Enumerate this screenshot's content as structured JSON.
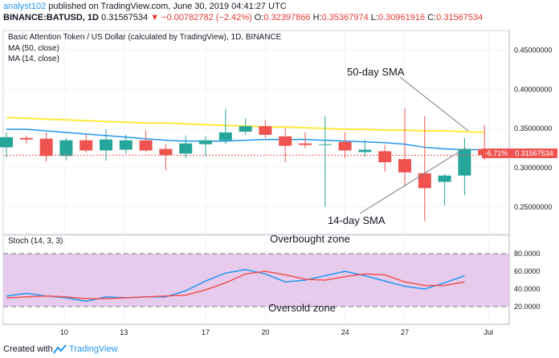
{
  "header": {
    "author": "analyst102",
    "published_text": "published on TradingView.com, June 30, 2019 04:41:27 UTC",
    "symbol": "BINANCE:BATUSD, 1D",
    "close_value": "0.31567534",
    "change_arrow": "▼",
    "change_value": "−0.00782782 (−2.42%)",
    "o_label": "O:",
    "o_value": "0.32397866",
    "h_label": "H:",
    "h_value": "0.35367974",
    "l_label": "L:",
    "l_value": "0.30961916",
    "c_label": "C:",
    "c_value": "0.31567534"
  },
  "footer": {
    "created_text": "Created with",
    "brand": "TradingView"
  },
  "colors": {
    "up": "#26a69a",
    "down": "#ef5350",
    "ma50": "#ffeb3b",
    "ma14": "#2196f3",
    "stoch_k": "#2196f3",
    "stoch_d": "#ef5350",
    "stoch_band": "#e1bee7"
  },
  "chart_data": [
    {
      "type": "candlestick",
      "title": "Basic Attention Token / US Dollar (calculated by TradingView), 1D, BINANCE",
      "legend": [
        "MA (50, close)",
        "MA (14, close)"
      ],
      "x_ticks": [
        "10",
        "13",
        "17",
        "20",
        "24",
        "27",
        "Jul"
      ],
      "y_ticks": [
        "0.25000000",
        "0.30000000",
        "0.35000000",
        "0.40000000",
        "0.45000000"
      ],
      "ylim": [
        0.215,
        0.475
      ],
      "last_price_label": "0.31567534",
      "last_change_label": "-6.71%",
      "annotations": [
        {
          "text": "50-day SMA",
          "target": "ma50"
        },
        {
          "text": "14-day SMA",
          "target": "ma14"
        }
      ],
      "candles": [
        {
          "o": 0.326,
          "h": 0.345,
          "l": 0.313,
          "c": 0.339
        },
        {
          "o": 0.338,
          "h": 0.341,
          "l": 0.331,
          "c": 0.336
        },
        {
          "o": 0.337,
          "h": 0.345,
          "l": 0.308,
          "c": 0.315
        },
        {
          "o": 0.315,
          "h": 0.338,
          "l": 0.31,
          "c": 0.335
        },
        {
          "o": 0.335,
          "h": 0.343,
          "l": 0.319,
          "c": 0.322
        },
        {
          "o": 0.322,
          "h": 0.349,
          "l": 0.309,
          "c": 0.336
        },
        {
          "o": 0.323,
          "h": 0.342,
          "l": 0.318,
          "c": 0.335
        },
        {
          "o": 0.335,
          "h": 0.348,
          "l": 0.32,
          "c": 0.322
        },
        {
          "o": 0.324,
          "h": 0.33,
          "l": 0.297,
          "c": 0.316
        },
        {
          "o": 0.318,
          "h": 0.341,
          "l": 0.312,
          "c": 0.331
        },
        {
          "o": 0.33,
          "h": 0.34,
          "l": 0.314,
          "c": 0.335
        },
        {
          "o": 0.335,
          "h": 0.375,
          "l": 0.33,
          "c": 0.345
        },
        {
          "o": 0.346,
          "h": 0.363,
          "l": 0.342,
          "c": 0.353
        },
        {
          "o": 0.353,
          "h": 0.361,
          "l": 0.338,
          "c": 0.342
        },
        {
          "o": 0.34,
          "h": 0.35,
          "l": 0.307,
          "c": 0.328
        },
        {
          "o": 0.331,
          "h": 0.345,
          "l": 0.325,
          "c": 0.329
        },
        {
          "o": 0.329,
          "h": 0.366,
          "l": 0.25,
          "c": 0.33
        },
        {
          "o": 0.333,
          "h": 0.345,
          "l": 0.312,
          "c": 0.322
        },
        {
          "o": 0.32,
          "h": 0.336,
          "l": 0.314,
          "c": 0.323
        },
        {
          "o": 0.321,
          "h": 0.329,
          "l": 0.295,
          "c": 0.307
        },
        {
          "o": 0.311,
          "h": 0.376,
          "l": 0.277,
          "c": 0.294
        },
        {
          "o": 0.293,
          "h": 0.366,
          "l": 0.232,
          "c": 0.274
        },
        {
          "o": 0.282,
          "h": 0.292,
          "l": 0.252,
          "c": 0.29
        },
        {
          "o": 0.29,
          "h": 0.338,
          "l": 0.265,
          "c": 0.324
        },
        {
          "o": 0.324,
          "h": 0.354,
          "l": 0.31,
          "c": 0.316
        }
      ],
      "ma50": [
        0.364,
        0.363,
        0.362,
        0.361,
        0.36,
        0.359,
        0.358,
        0.357,
        0.357,
        0.356,
        0.355,
        0.354,
        0.353,
        0.352,
        0.352,
        0.351,
        0.35,
        0.349,
        0.349,
        0.348,
        0.348,
        0.347,
        0.347,
        0.346,
        0.345
      ],
      "ma14": [
        0.349,
        0.349,
        0.347,
        0.345,
        0.343,
        0.341,
        0.339,
        0.337,
        0.335,
        0.334,
        0.334,
        0.334,
        0.335,
        0.336,
        0.336,
        0.336,
        0.335,
        0.334,
        0.333,
        0.332,
        0.33,
        0.326,
        0.324,
        0.323,
        0.323
      ]
    },
    {
      "type": "line",
      "title": "Stoch (14, 3, 3)",
      "x_ticks": [
        "10",
        "13",
        "17",
        "20",
        "24",
        "27",
        "Jul"
      ],
      "y_ticks": [
        "20.0000",
        "40.0000",
        "60.0000",
        "80.0000"
      ],
      "ylim": [
        0,
        100
      ],
      "overbought": 80,
      "oversold": 20,
      "annotations": [
        {
          "text": "Overbought zone",
          "level": 80
        },
        {
          "text": "Oversold zone",
          "level": 20
        }
      ],
      "series": [
        {
          "name": "",
          "values": [
            32,
            35,
            32,
            30,
            26,
            31,
            30,
            31,
            31,
            38,
            49,
            58,
            62,
            57,
            48,
            50,
            55,
            60,
            55,
            49,
            43,
            40,
            47,
            55
          ]
        },
        {
          "name": "",
          "values": [
            30,
            31,
            32,
            31,
            29,
            29,
            30,
            31,
            32,
            33,
            39,
            47,
            57,
            60,
            56,
            51,
            50,
            54,
            57,
            56,
            48,
            44,
            44,
            48
          ]
        }
      ]
    }
  ]
}
